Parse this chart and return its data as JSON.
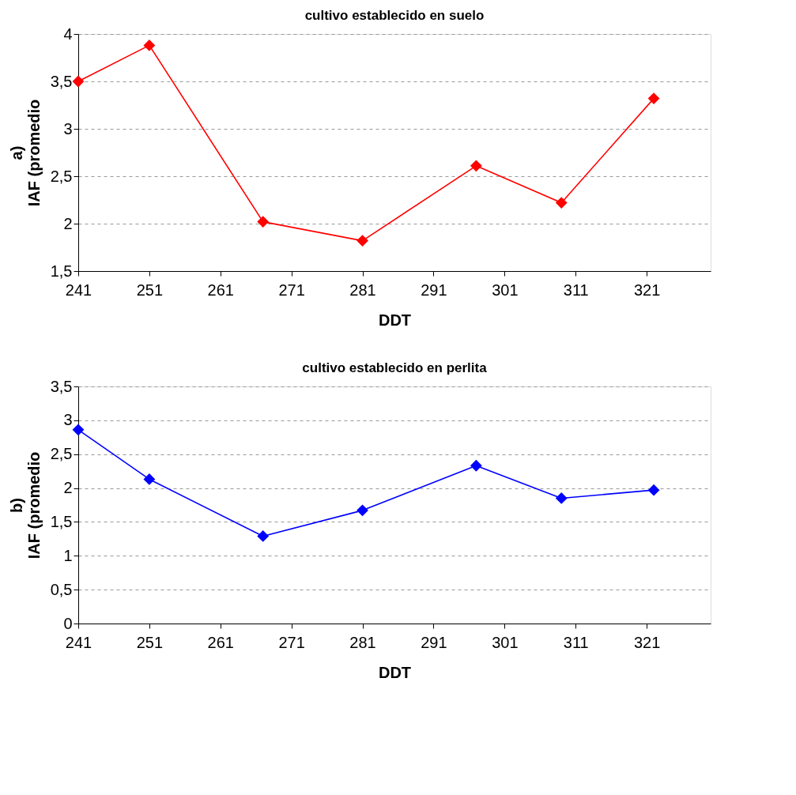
{
  "chart_data": [
    {
      "type": "line",
      "title": "cultivo establecido en suelo",
      "xlabel": "DDT",
      "ylabel": "a)\nIAF (promedio",
      "x": [
        241,
        251,
        267,
        281,
        297,
        309,
        322
      ],
      "series": [
        {
          "color": "#ff0000",
          "values": [
            3.5,
            3.88,
            2.02,
            1.82,
            2.61,
            2.22,
            3.32
          ]
        }
      ],
      "xlim": [
        241,
        330
      ],
      "xticks": [
        241,
        251,
        261,
        271,
        281,
        291,
        301,
        311,
        321
      ],
      "ylim": [
        1.5,
        4
      ],
      "yticks": [
        {
          "value": 1.5,
          "label": "1,5"
        },
        2,
        {
          "value": 2.5,
          "label": "2,5"
        },
        3,
        {
          "value": 3.5,
          "label": "3,5"
        },
        4
      ],
      "grid": "y",
      "marker": "diamond",
      "line_style": "solid"
    },
    {
      "type": "line",
      "title": "cultivo establecido en perlita",
      "xlabel": "DDT",
      "ylabel": "b)\nIAF (promedio",
      "x": [
        241,
        251,
        267,
        281,
        297,
        309,
        322
      ],
      "series": [
        {
          "color": "#0000ff",
          "values": [
            2.86,
            2.13,
            1.29,
            1.67,
            2.33,
            1.85,
            1.97
          ]
        }
      ],
      "xlim": [
        241,
        330
      ],
      "xticks": [
        241,
        251,
        261,
        271,
        281,
        291,
        301,
        311,
        321
      ],
      "ylim": [
        0,
        3.5
      ],
      "yticks": [
        0,
        {
          "value": 0.5,
          "label": "0,5"
        },
        1,
        {
          "value": 1.5,
          "label": "1,5"
        },
        2,
        {
          "value": 2.5,
          "label": "2,5"
        },
        3,
        {
          "value": 3.5,
          "label": "3,5"
        }
      ],
      "grid": "y",
      "marker": "diamond",
      "line_style": "solid"
    }
  ]
}
